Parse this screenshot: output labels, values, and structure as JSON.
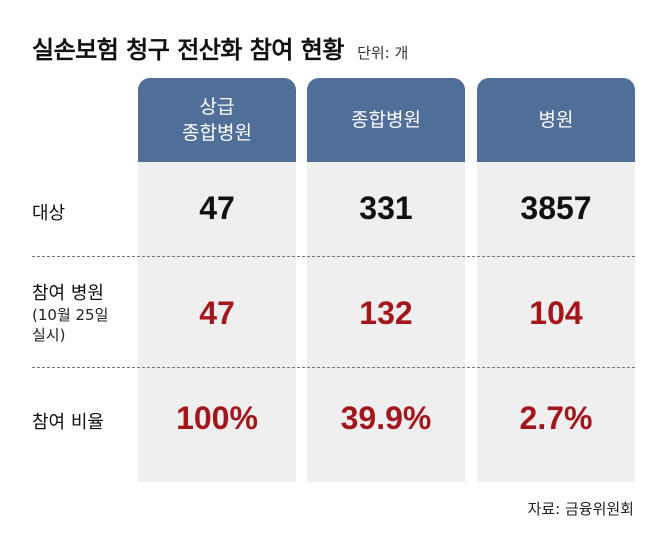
{
  "title": "실손보험 청구 전산화 참여 현황",
  "unit": "단위: 개",
  "source": "자료: 금융위원회",
  "columns": [
    "상급\n종합병원",
    "종합병원",
    "병원"
  ],
  "rows": [
    {
      "label": "대상",
      "sub": "",
      "values": [
        "47",
        "331",
        "3857"
      ]
    },
    {
      "label": "참여 병원",
      "sub": "(10월 25일\n실시)",
      "values": [
        "47",
        "132",
        "104"
      ]
    },
    {
      "label": "참여 비율",
      "sub": "",
      "values": [
        "100%",
        "39.9%",
        "2.7%"
      ]
    }
  ],
  "colors": {
    "header": "#4f6f98",
    "column_bg": "#efefef",
    "highlight": "#a3161c",
    "text": "#111111"
  },
  "chart_data": {
    "type": "table",
    "title": "실손보험 청구 전산화 참여 현황",
    "unit": "개",
    "categories": [
      "상급 종합병원",
      "종합병원",
      "병원"
    ],
    "series": [
      {
        "name": "대상",
        "values": [
          47,
          331,
          3857
        ]
      },
      {
        "name": "참여 병원",
        "values": [
          47,
          132,
          104
        ]
      },
      {
        "name": "참여 비율",
        "values": [
          100,
          39.9,
          2.7
        ]
      }
    ]
  }
}
